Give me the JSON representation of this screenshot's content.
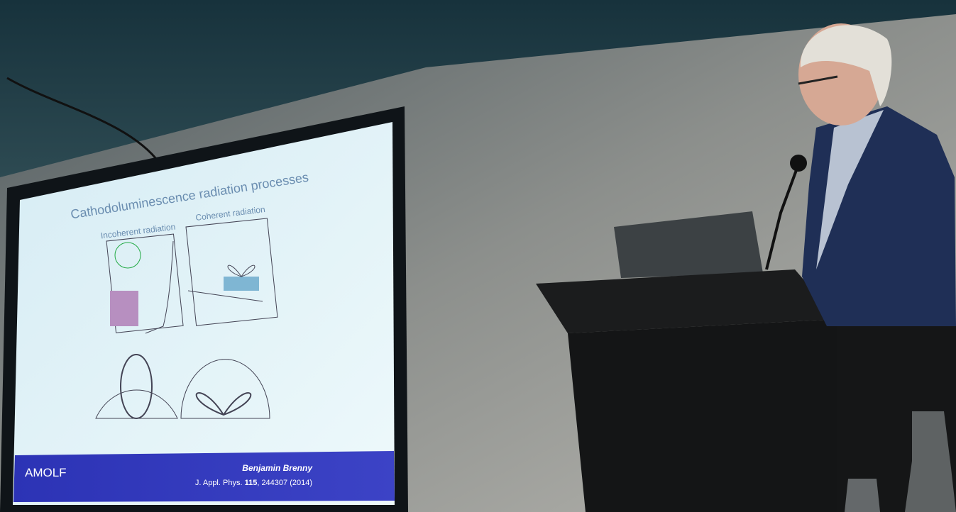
{
  "slide": {
    "title": "Cathodoluminescence radiation processes",
    "panels": [
      "Incoherent radiation",
      "Coherent radiation"
    ],
    "footer": {
      "logo": "AMOLF",
      "author": "Benjamin Brenny",
      "citation": {
        "journal": "J. Appl. Phys.",
        "volume": "115",
        "rest": ", 244307 (2014)"
      }
    }
  }
}
